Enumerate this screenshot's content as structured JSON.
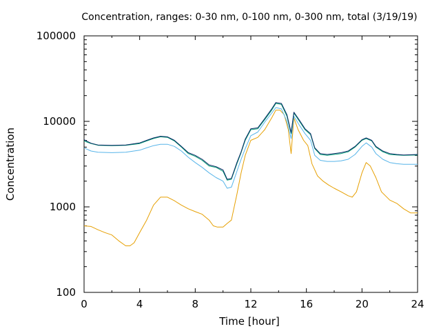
{
  "chart_data": {
    "type": "line",
    "title": "Concentration, ranges: 0-30 nm, 0-100 nm, 0-300 nm, total (3/19/19)",
    "xlabel": "Time [hour]",
    "ylabel": "Concentration",
    "xlim": [
      0,
      24
    ],
    "ylim": [
      100,
      100000
    ],
    "yscale": "log",
    "grid": false,
    "x_ticks": [
      "0",
      "4",
      "8",
      "12",
      "16",
      "20",
      "24"
    ],
    "y_ticks": [
      "100",
      "1000",
      "10000",
      "100000"
    ],
    "series": [
      {
        "color": "#e69f00",
        "points": [
          [
            0,
            600
          ],
          [
            0.5,
            590
          ],
          [
            1,
            540
          ],
          [
            1.5,
            500
          ],
          [
            2,
            470
          ],
          [
            2.5,
            400
          ],
          [
            3,
            350
          ],
          [
            3.3,
            350
          ],
          [
            3.6,
            380
          ],
          [
            4,
            500
          ],
          [
            4.5,
            700
          ],
          [
            5,
            1050
          ],
          [
            5.5,
            1300
          ],
          [
            6,
            1300
          ],
          [
            6.5,
            1180
          ],
          [
            7,
            1050
          ],
          [
            7.5,
            950
          ],
          [
            8,
            880
          ],
          [
            8.5,
            820
          ],
          [
            9,
            700
          ],
          [
            9.3,
            600
          ],
          [
            9.6,
            580
          ],
          [
            10,
            580
          ],
          [
            10.3,
            640
          ],
          [
            10.6,
            700
          ],
          [
            11,
            1400
          ],
          [
            11.3,
            2500
          ],
          [
            11.6,
            4000
          ],
          [
            12,
            6000
          ],
          [
            12.5,
            6500
          ],
          [
            13,
            8000
          ],
          [
            13.5,
            11000
          ],
          [
            13.8,
            13500
          ],
          [
            14.1,
            13500
          ],
          [
            14.4,
            12000
          ],
          [
            14.7,
            8000
          ],
          [
            14.9,
            4200
          ],
          [
            15.1,
            11000
          ],
          [
            15.4,
            8000
          ],
          [
            15.8,
            6000
          ],
          [
            16.1,
            5200
          ],
          [
            16.4,
            3200
          ],
          [
            16.8,
            2300
          ],
          [
            17.2,
            2000
          ],
          [
            17.6,
            1800
          ],
          [
            18,
            1650
          ],
          [
            18.5,
            1500
          ],
          [
            19,
            1350
          ],
          [
            19.3,
            1300
          ],
          [
            19.6,
            1500
          ],
          [
            20,
            2500
          ],
          [
            20.3,
            3300
          ],
          [
            20.6,
            3000
          ],
          [
            21,
            2200
          ],
          [
            21.4,
            1500
          ],
          [
            22,
            1200
          ],
          [
            22.5,
            1100
          ],
          [
            23,
            950
          ],
          [
            23.5,
            850
          ],
          [
            24,
            850
          ]
        ]
      },
      {
        "color": "#56b4e9",
        "points": [
          [
            0,
            4900
          ],
          [
            0.5,
            4500
          ],
          [
            1,
            4350
          ],
          [
            2,
            4300
          ],
          [
            3,
            4350
          ],
          [
            4,
            4600
          ],
          [
            4.5,
            4900
          ],
          [
            5,
            5200
          ],
          [
            5.5,
            5400
          ],
          [
            6,
            5400
          ],
          [
            6.5,
            5100
          ],
          [
            7,
            4500
          ],
          [
            7.5,
            3800
          ],
          [
            8,
            3300
          ],
          [
            8.5,
            2900
          ],
          [
            9,
            2500
          ],
          [
            9.5,
            2200
          ],
          [
            10,
            2000
          ],
          [
            10.3,
            1650
          ],
          [
            10.6,
            1700
          ],
          [
            11,
            2600
          ],
          [
            11.3,
            3600
          ],
          [
            11.6,
            4800
          ],
          [
            12,
            6800
          ],
          [
            12.5,
            7500
          ],
          [
            13,
            9800
          ],
          [
            13.5,
            12500
          ],
          [
            13.8,
            14500
          ],
          [
            14.2,
            14000
          ],
          [
            14.6,
            10000
          ],
          [
            14.9,
            6300
          ],
          [
            15.1,
            11500
          ],
          [
            15.5,
            9000
          ],
          [
            15.9,
            7200
          ],
          [
            16.3,
            6000
          ],
          [
            16.6,
            4000
          ],
          [
            17,
            3500
          ],
          [
            17.5,
            3400
          ],
          [
            18,
            3400
          ],
          [
            18.5,
            3450
          ],
          [
            19,
            3600
          ],
          [
            19.5,
            4100
          ],
          [
            20,
            5100
          ],
          [
            20.3,
            5600
          ],
          [
            20.7,
            5000
          ],
          [
            21,
            4200
          ],
          [
            21.5,
            3600
          ],
          [
            22,
            3300
          ],
          [
            22.5,
            3200
          ],
          [
            23,
            3150
          ],
          [
            24,
            3150
          ]
        ]
      },
      {
        "color": "#009e73",
        "points": [
          [
            0,
            5900
          ],
          [
            0.5,
            5500
          ],
          [
            1,
            5250
          ],
          [
            2,
            5200
          ],
          [
            3,
            5250
          ],
          [
            4,
            5500
          ],
          [
            4.5,
            5900
          ],
          [
            5,
            6300
          ],
          [
            5.5,
            6600
          ],
          [
            6,
            6500
          ],
          [
            6.5,
            5900
          ],
          [
            7,
            5000
          ],
          [
            7.5,
            4200
          ],
          [
            8,
            3900
          ],
          [
            8.5,
            3500
          ],
          [
            9,
            3000
          ],
          [
            9.5,
            2900
          ],
          [
            10,
            2600
          ],
          [
            10.3,
            2050
          ],
          [
            10.6,
            2100
          ],
          [
            11,
            3200
          ],
          [
            11.3,
            4300
          ],
          [
            11.6,
            6000
          ],
          [
            12,
            8000
          ],
          [
            12.5,
            8200
          ],
          [
            13,
            10500
          ],
          [
            13.5,
            13500
          ],
          [
            13.8,
            16200
          ],
          [
            14.2,
            15800
          ],
          [
            14.6,
            11500
          ],
          [
            14.9,
            7200
          ],
          [
            15.1,
            12500
          ],
          [
            15.5,
            10000
          ],
          [
            15.9,
            8000
          ],
          [
            16.3,
            7000
          ],
          [
            16.6,
            4800
          ],
          [
            17,
            4100
          ],
          [
            17.5,
            4000
          ],
          [
            18,
            4100
          ],
          [
            18.5,
            4200
          ],
          [
            19,
            4400
          ],
          [
            19.5,
            5000
          ],
          [
            20,
            6000
          ],
          [
            20.3,
            6300
          ],
          [
            20.7,
            5900
          ],
          [
            21,
            5000
          ],
          [
            21.5,
            4400
          ],
          [
            22,
            4100
          ],
          [
            22.5,
            4050
          ],
          [
            23,
            4000
          ],
          [
            24,
            4050
          ]
        ]
      },
      {
        "color": "#0a2a66",
        "points": [
          [
            0,
            6100
          ],
          [
            0.5,
            5550
          ],
          [
            1,
            5300
          ],
          [
            2,
            5250
          ],
          [
            3,
            5300
          ],
          [
            4,
            5600
          ],
          [
            4.5,
            6000
          ],
          [
            5,
            6400
          ],
          [
            5.5,
            6700
          ],
          [
            6,
            6600
          ],
          [
            6.5,
            6000
          ],
          [
            7,
            5100
          ],
          [
            7.5,
            4300
          ],
          [
            8,
            4000
          ],
          [
            8.5,
            3600
          ],
          [
            9,
            3100
          ],
          [
            9.5,
            2950
          ],
          [
            10,
            2700
          ],
          [
            10.3,
            2100
          ],
          [
            10.6,
            2150
          ],
          [
            11,
            3300
          ],
          [
            11.3,
            4400
          ],
          [
            11.6,
            6200
          ],
          [
            12,
            8200
          ],
          [
            12.5,
            8400
          ],
          [
            13,
            10800
          ],
          [
            13.5,
            14000
          ],
          [
            13.8,
            16600
          ],
          [
            14.2,
            16200
          ],
          [
            14.6,
            12000
          ],
          [
            14.9,
            7400
          ],
          [
            15.1,
            12800
          ],
          [
            15.5,
            10300
          ],
          [
            15.9,
            8200
          ],
          [
            16.3,
            7200
          ],
          [
            16.6,
            4900
          ],
          [
            17,
            4200
          ],
          [
            17.5,
            4100
          ],
          [
            18,
            4200
          ],
          [
            18.5,
            4300
          ],
          [
            19,
            4500
          ],
          [
            19.5,
            5100
          ],
          [
            20,
            6100
          ],
          [
            20.3,
            6400
          ],
          [
            20.7,
            6000
          ],
          [
            21,
            5100
          ],
          [
            21.5,
            4500
          ],
          [
            22,
            4200
          ],
          [
            22.5,
            4100
          ],
          [
            23,
            4050
          ],
          [
            24,
            4100
          ]
        ]
      }
    ]
  }
}
